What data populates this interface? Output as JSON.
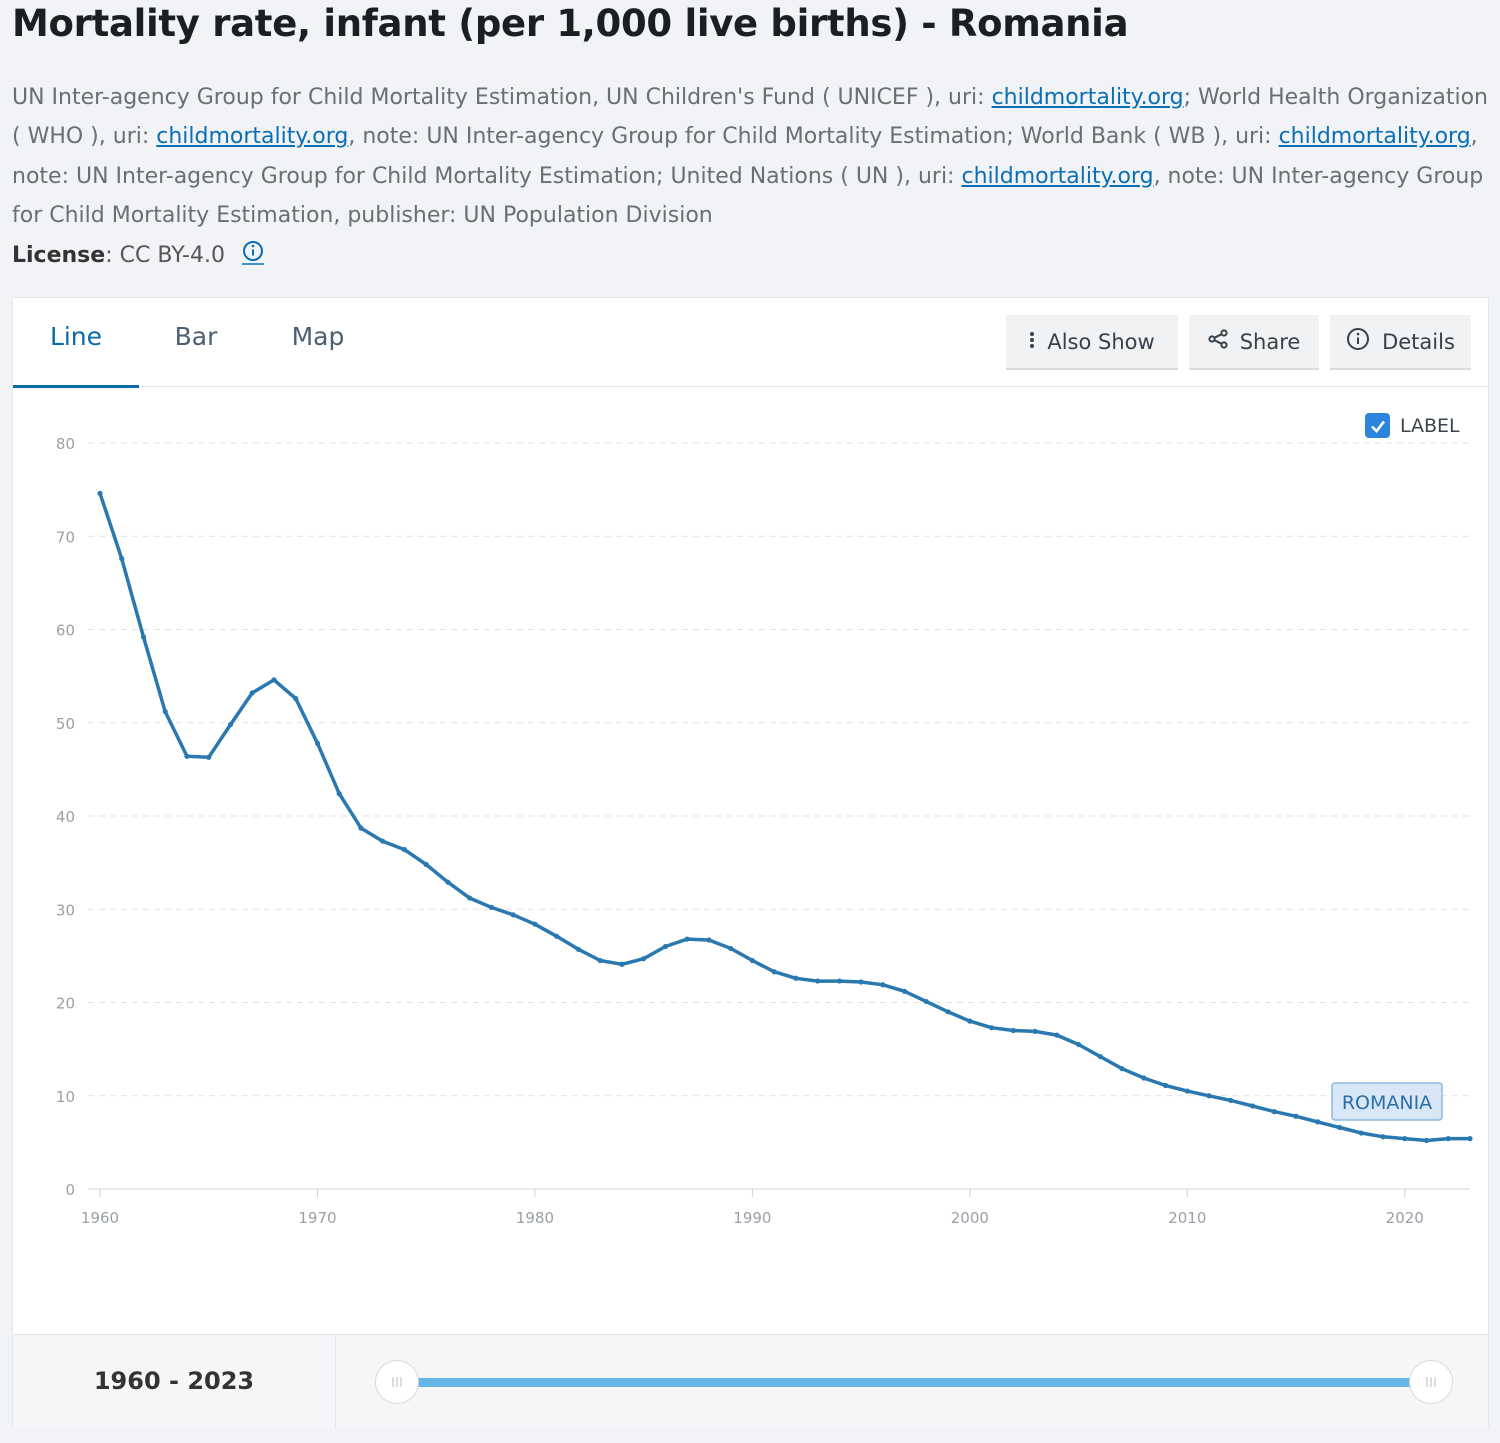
{
  "page": {
    "title": "Mortality rate, infant (per 1,000 live births) - Romania",
    "source_parts": [
      {
        "text": "UN Inter-agency Group for Child Mortality Estimation, UN Children's Fund ( UNICEF ), uri: "
      },
      {
        "link": "childmortality.org"
      },
      {
        "text": "; World Health Organization ( WHO ), uri: "
      },
      {
        "link": "childmortality.org"
      },
      {
        "text": ", note: UN Inter-agency Group for Child Mortality Estimation; World Bank ( WB ), uri: "
      },
      {
        "link": "childmortality.org"
      },
      {
        "text": ", note: UN Inter-agency Group for Child Mortality Estimation; United Nations ( UN ), uri: "
      },
      {
        "link": "childmortality.org"
      },
      {
        "text": ", note: UN Inter-agency Group for Child Mortality Estimation, publisher: UN Population Division"
      }
    ],
    "license_label": "License",
    "license_value": ": CC BY-4.0"
  },
  "tabs": [
    {
      "label": "Line",
      "active": true
    },
    {
      "label": "Bar",
      "active": false
    },
    {
      "label": "Map",
      "active": false
    }
  ],
  "toolbar": {
    "also_show": "Also Show",
    "share": "Share",
    "details": "Details"
  },
  "label_toggle": {
    "label": "LABEL",
    "checked": true
  },
  "range": {
    "text_start": "1960",
    "text_sep": " - ",
    "text_end": "2023"
  },
  "colors": {
    "line": "#2a78b0",
    "accent": "#0b6aa8",
    "slider": "#65b7e8"
  },
  "chart_data": {
    "type": "line",
    "series": [
      {
        "name": "ROMANIA",
        "x": [
          1960,
          1961,
          1962,
          1963,
          1964,
          1965,
          1966,
          1967,
          1968,
          1969,
          1970,
          1971,
          1972,
          1973,
          1974,
          1975,
          1976,
          1977,
          1978,
          1979,
          1980,
          1981,
          1982,
          1983,
          1984,
          1985,
          1986,
          1987,
          1988,
          1989,
          1990,
          1991,
          1992,
          1993,
          1994,
          1995,
          1996,
          1997,
          1998,
          1999,
          2000,
          2001,
          2002,
          2003,
          2004,
          2005,
          2006,
          2007,
          2008,
          2009,
          2010,
          2011,
          2012,
          2013,
          2014,
          2015,
          2016,
          2017,
          2018,
          2019,
          2020,
          2021,
          2022,
          2023
        ],
        "values": [
          74.6,
          67.6,
          59.2,
          51.2,
          46.4,
          46.3,
          49.8,
          53.2,
          54.6,
          52.6,
          47.8,
          42.4,
          38.7,
          37.3,
          36.4,
          34.8,
          32.9,
          31.2,
          30.2,
          29.4,
          28.4,
          27.1,
          25.7,
          24.5,
          24.1,
          24.7,
          26.0,
          26.8,
          26.7,
          25.8,
          24.5,
          23.3,
          22.6,
          22.3,
          22.3,
          22.2,
          21.9,
          21.2,
          20.1,
          19.0,
          18.0,
          17.3,
          17.0,
          16.9,
          16.5,
          15.5,
          14.2,
          12.9,
          11.9,
          11.1,
          10.5,
          10.0,
          9.5,
          8.9,
          8.3,
          7.8,
          7.2,
          6.6,
          6.0,
          5.6,
          5.4,
          5.2,
          5.4,
          5.4
        ]
      }
    ],
    "x_ticks": [
      1960,
      1970,
      1980,
      1990,
      2000,
      2010,
      2020
    ],
    "y_ticks": [
      0,
      10,
      20,
      30,
      40,
      50,
      60,
      70,
      80
    ],
    "xlim": [
      1960,
      2023
    ],
    "ylim": [
      0,
      80
    ],
    "grid": true,
    "end_label": "ROMANIA"
  }
}
